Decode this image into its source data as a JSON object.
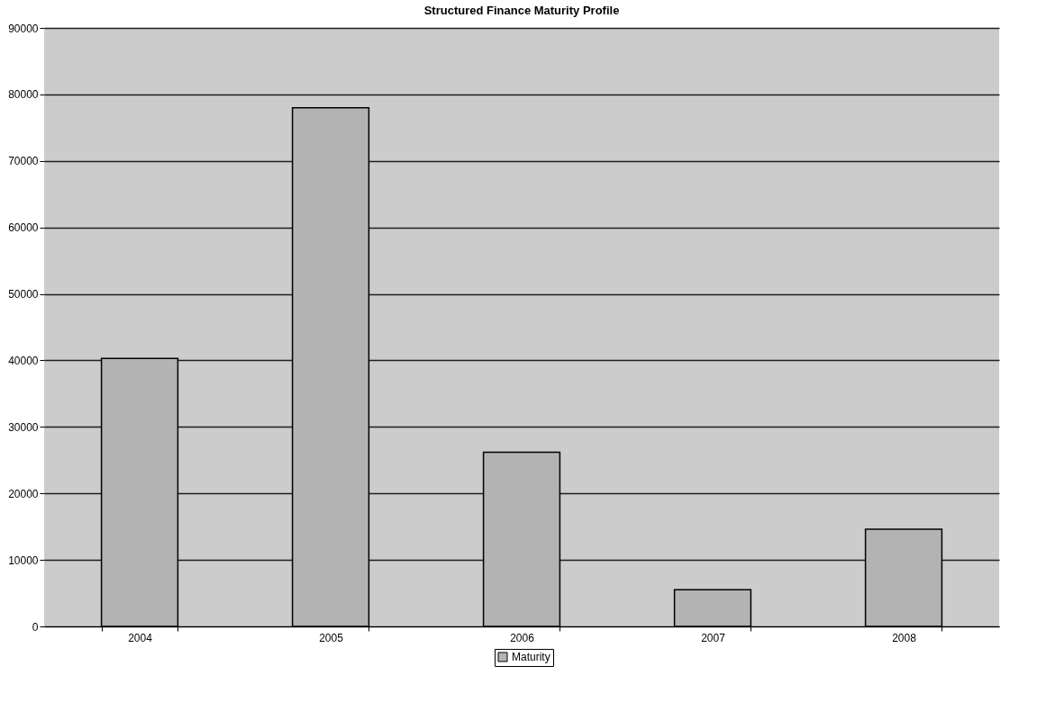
{
  "chart_data": {
    "type": "bar",
    "title": "Structured Finance Maturity Profile",
    "categories": [
      "2004",
      "2005",
      "2006",
      "2007",
      "2008"
    ],
    "series": [
      {
        "name": "Maturity",
        "color": "#b3b3b3",
        "values": [
          40300,
          78000,
          26200,
          5500,
          14600
        ]
      }
    ],
    "ylim": [
      0,
      90000
    ],
    "yticks": [
      0,
      10000,
      20000,
      30000,
      40000,
      50000,
      60000,
      70000,
      80000,
      90000
    ],
    "grid": "y",
    "legend": "bottom"
  }
}
